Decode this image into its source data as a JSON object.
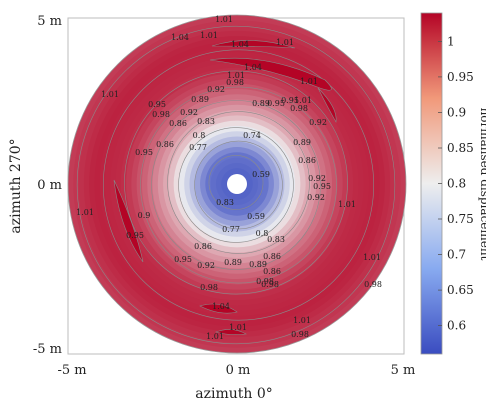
{
  "chart_data": {
    "type": "heatmap",
    "subtype": "filled polar contour",
    "title": "",
    "xlabel": "azimuth 0°",
    "ylabel": "azimuth 270°",
    "xlim": [
      -5,
      5
    ],
    "ylim": [
      -5,
      5
    ],
    "x_ticks": [
      "-5 m",
      "0 m",
      "5 m"
    ],
    "y_ticks": [
      "5 m",
      "0 m",
      "-5 m"
    ],
    "outer_radius_m": 5,
    "inner_hole_radius_m": 0.3,
    "colorbar": {
      "label": "normalised displacement",
      "min": 0.56,
      "max": 1.04,
      "ticks": [
        "0.6",
        "0.65",
        "0.7",
        "0.75",
        "0.8",
        "0.85",
        "0.9",
        "0.95",
        "1"
      ],
      "colors": {
        "low": "#3a4cc0",
        "mid": "#f0f0f0",
        "high": "#b40426"
      }
    },
    "radial_profile": [
      {
        "r": 0.3,
        "value": 0.59
      },
      {
        "r": 0.9,
        "value": 0.62
      },
      {
        "r": 1.4,
        "value": 0.74
      },
      {
        "r": 2.0,
        "value": 0.86
      },
      {
        "r": 2.5,
        "value": 0.92
      },
      {
        "r": 3.0,
        "value": 0.97
      },
      {
        "r": 3.4,
        "value": 1.0
      },
      {
        "r": 4.2,
        "value": 1.01
      },
      {
        "r": 5.0,
        "value": 0.98
      }
    ],
    "contour_labels": [
      "1.01",
      "1.04",
      "1.01",
      "1.04",
      "1.01",
      "1.01",
      "1.04",
      "1.01",
      "0.98",
      "1.01",
      "0.95",
      "0.92",
      "0.89",
      "0.95",
      "1.01",
      "0.98",
      "0.92",
      "0.86",
      "0.89",
      "0.98",
      "0.83",
      "0.95",
      "0.8",
      "0.86",
      "0.77",
      "0.74",
      "0.59",
      "0.83",
      "0.9",
      "0.59",
      "0.95",
      "0.86",
      "0.92",
      "0.89",
      "0.95",
      "0.77",
      "0.8",
      "0.98",
      "0.86",
      "1.01",
      "0.83",
      "0.89",
      "0.92",
      "0.86",
      "0.95",
      "0.89",
      "0.95",
      "0.92",
      "0.86",
      "0.98",
      "0.92",
      "1.01",
      "0.98",
      "1.01",
      "1.04",
      "1.01",
      "1.01",
      "0.98",
      "1.01",
      "0.98"
    ]
  }
}
